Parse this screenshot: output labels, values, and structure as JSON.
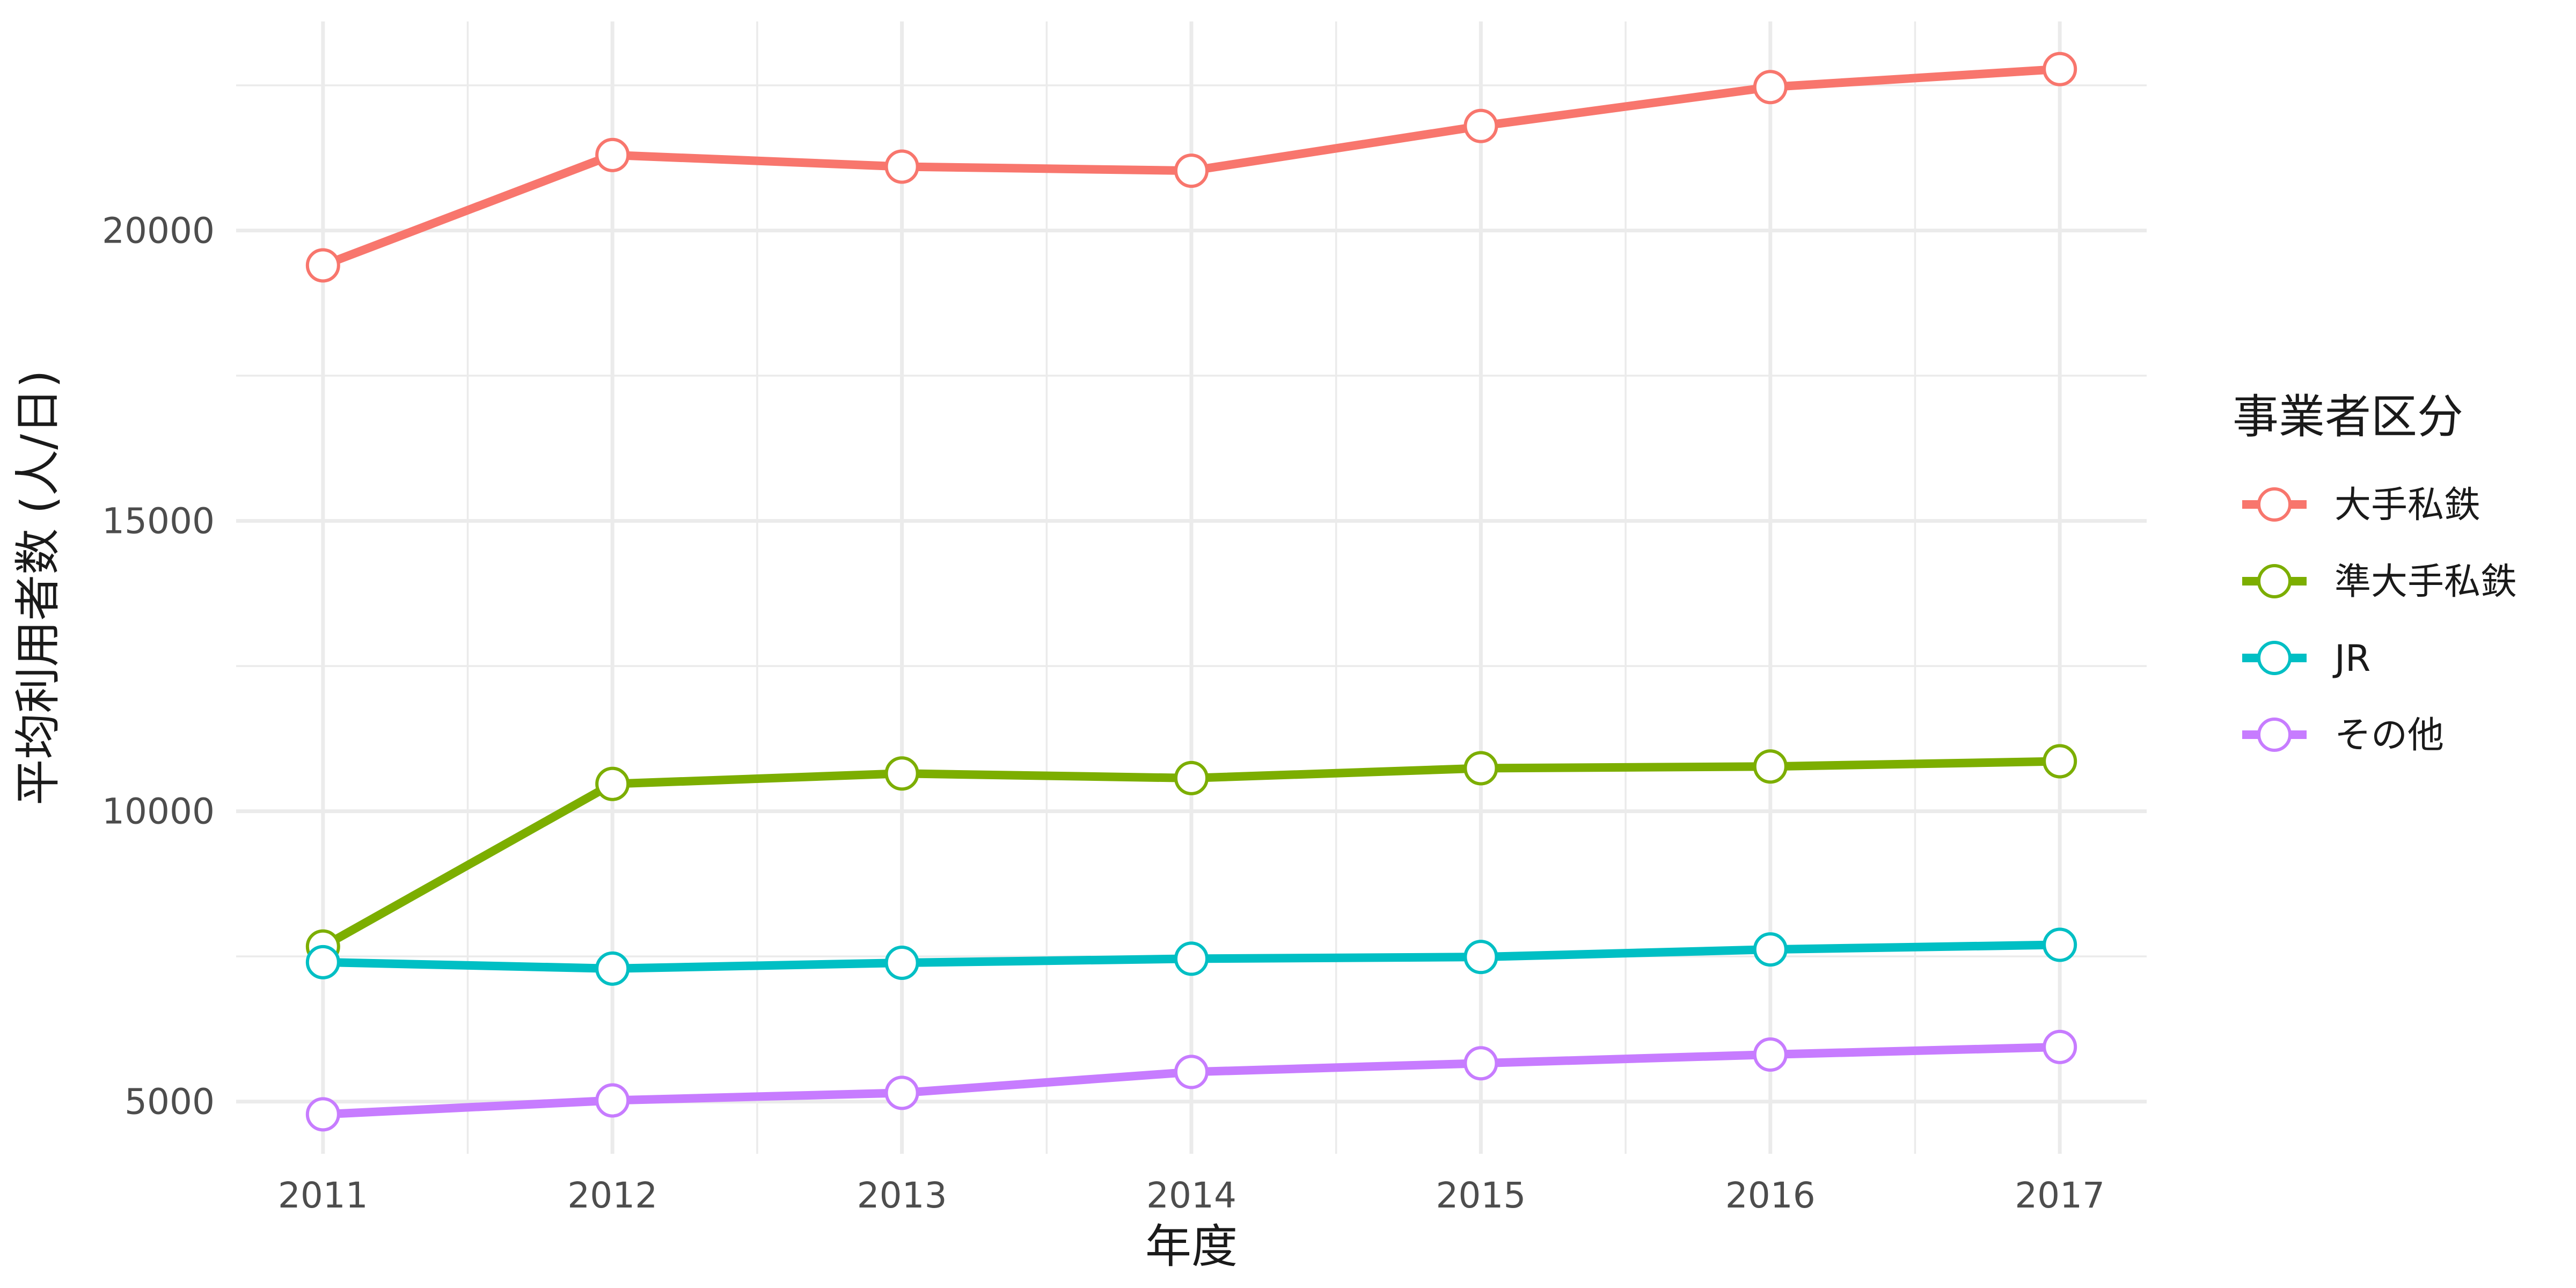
{
  "chart_data": {
    "type": "line",
    "xlabel": "年度",
    "ylabel": "平均利用者数 (人/日)",
    "x": [
      2011,
      2012,
      2013,
      2014,
      2015,
      2016,
      2017
    ],
    "xlim": [
      2010.7,
      2017.3
    ],
    "ylim": [
      4100,
      23600
    ],
    "y_ticks": [
      5000,
      10000,
      15000,
      20000
    ],
    "grid": true,
    "legend": {
      "title": "事業者区分",
      "position": "right"
    },
    "series": [
      {
        "name": "大手私鉄",
        "color": "#F8766D",
        "values": [
          19400,
          21300,
          21100,
          21030,
          21800,
          22470,
          22780
        ]
      },
      {
        "name": "準大手私鉄",
        "color": "#7CAE00",
        "values": [
          7670,
          10470,
          10650,
          10570,
          10740,
          10770,
          10860
        ]
      },
      {
        "name": "JR",
        "color": "#00BFC4",
        "values": [
          7400,
          7290,
          7390,
          7460,
          7490,
          7620,
          7700
        ]
      },
      {
        "name": "その他",
        "color": "#C77CFF",
        "values": [
          4780,
          5020,
          5150,
          5510,
          5660,
          5810,
          5940
        ]
      }
    ]
  }
}
